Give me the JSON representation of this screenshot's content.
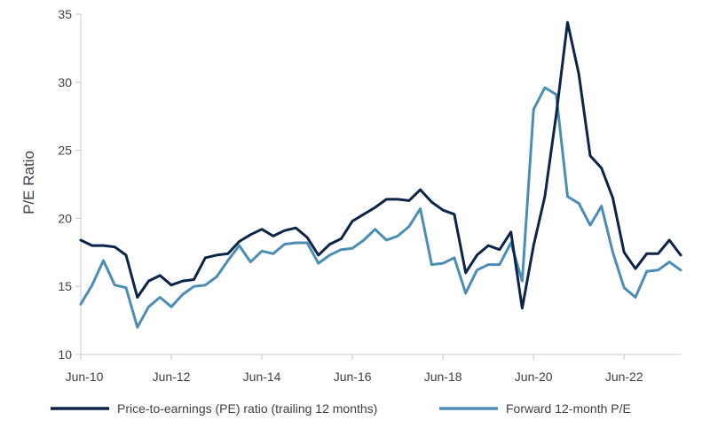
{
  "chart_data": {
    "type": "line",
    "ylabel": "P/E Ratio",
    "ylim": [
      10,
      35
    ],
    "yticks": [
      "10",
      "15",
      "20",
      "25",
      "30",
      "35"
    ],
    "xticks": [
      "Jun-10",
      "Jun-12",
      "Jun-14",
      "Jun-16",
      "Jun-18",
      "Jun-20",
      "Jun-22"
    ],
    "x": [
      "Jun-10",
      "Sep-10",
      "Dec-10",
      "Mar-11",
      "Jun-11",
      "Sep-11",
      "Dec-11",
      "Mar-12",
      "Jun-12",
      "Sep-12",
      "Dec-12",
      "Mar-13",
      "Jun-13",
      "Sep-13",
      "Dec-13",
      "Mar-14",
      "Jun-14",
      "Sep-14",
      "Dec-14",
      "Mar-15",
      "Jun-15",
      "Sep-15",
      "Dec-15",
      "Mar-16",
      "Jun-16",
      "Sep-16",
      "Dec-16",
      "Mar-17",
      "Jun-17",
      "Sep-17",
      "Dec-17",
      "Mar-18",
      "Jun-18",
      "Sep-18",
      "Dec-18",
      "Mar-19",
      "Jun-19",
      "Sep-19",
      "Dec-19",
      "Mar-20",
      "Jun-20",
      "Sep-20",
      "Dec-20",
      "Mar-21",
      "Jun-21",
      "Sep-21",
      "Dec-21",
      "Mar-22",
      "Jun-22",
      "Sep-22",
      "Dec-22",
      "Mar-23",
      "Jun-23",
      "Sep-23"
    ],
    "legend_position": "bottom",
    "grid": false,
    "series": [
      {
        "name": "Price-to-earnings (PE) ratio (trailing 12 months)",
        "color": "#0b2447",
        "values": [
          18.4,
          18.0,
          18.0,
          17.9,
          17.3,
          14.2,
          15.4,
          15.8,
          15.1,
          15.4,
          15.5,
          17.1,
          17.3,
          17.4,
          18.3,
          18.8,
          19.2,
          18.7,
          19.1,
          19.3,
          18.6,
          17.3,
          18.1,
          18.5,
          19.8,
          20.3,
          20.8,
          21.4,
          21.4,
          21.3,
          22.1,
          21.2,
          20.6,
          20.3,
          16.0,
          17.3,
          18.0,
          17.7,
          19.0,
          13.4,
          18.0,
          21.6,
          27.6,
          34.4,
          30.6,
          24.6,
          23.7,
          21.5,
          17.5,
          16.3,
          17.4,
          17.4,
          18.4,
          17.3
        ]
      },
      {
        "name": "Forward 12-month P/E",
        "color": "#4b8db5",
        "values": [
          13.7,
          15.1,
          16.9,
          15.1,
          14.9,
          12.0,
          13.5,
          14.2,
          13.5,
          14.4,
          15.0,
          15.1,
          15.7,
          16.9,
          18.0,
          16.8,
          17.6,
          17.4,
          18.1,
          18.2,
          18.2,
          16.7,
          17.3,
          17.7,
          17.8,
          18.4,
          19.2,
          18.4,
          18.7,
          19.4,
          20.7,
          16.6,
          16.7,
          17.1,
          14.5,
          16.2,
          16.6,
          16.6,
          18.2,
          15.4,
          28.0,
          29.6,
          29.1,
          21.6,
          21.1,
          19.5,
          20.9,
          17.5,
          14.9,
          14.2,
          16.1,
          16.2,
          16.8,
          16.2
        ]
      }
    ]
  }
}
